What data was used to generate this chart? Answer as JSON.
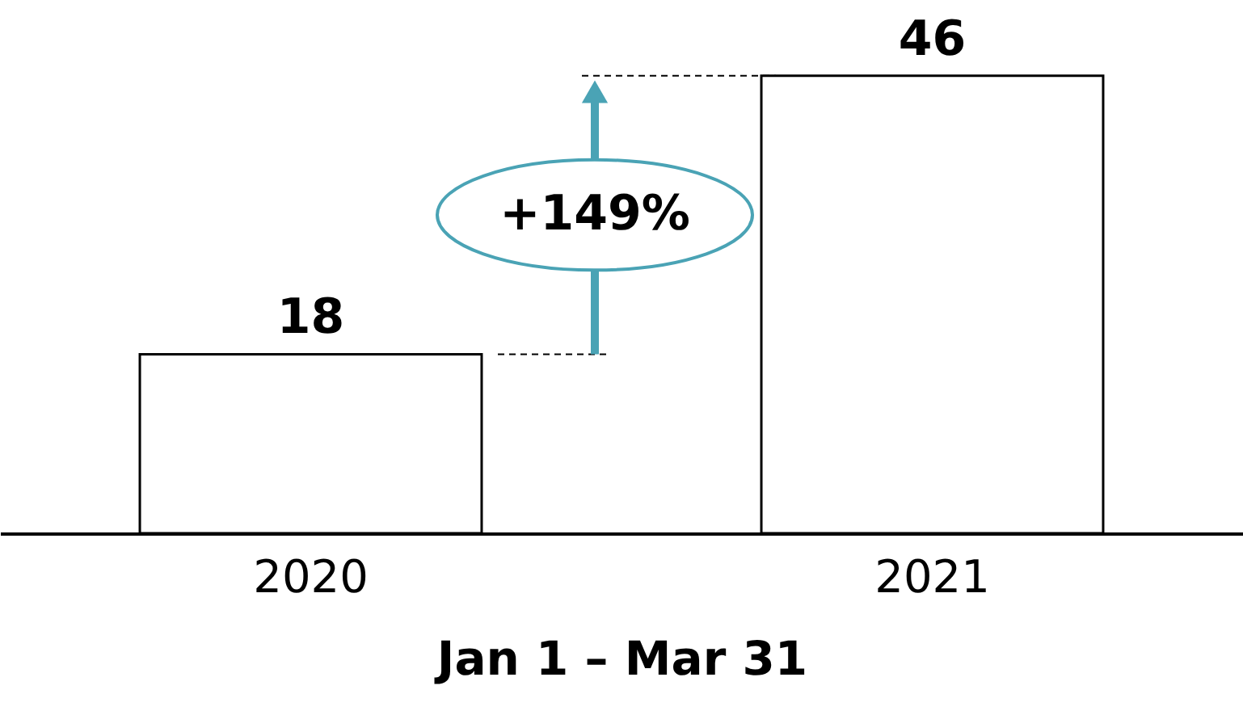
{
  "chart_data": {
    "type": "bar",
    "categories": [
      "2020",
      "2021"
    ],
    "values": [
      18,
      46
    ],
    "xlabel": "Jan 1 – Mar 31",
    "data_labels": true,
    "grid": false,
    "color": "#ffffff",
    "ref_lines": [
      {
        "axis": "y",
        "value": 18,
        "line_style": "dashed",
        "color": "#000000"
      },
      {
        "axis": "y",
        "value": 46,
        "line_style": "dashed",
        "color": "#000000"
      }
    ],
    "annotations": [
      "+149%"
    ]
  }
}
